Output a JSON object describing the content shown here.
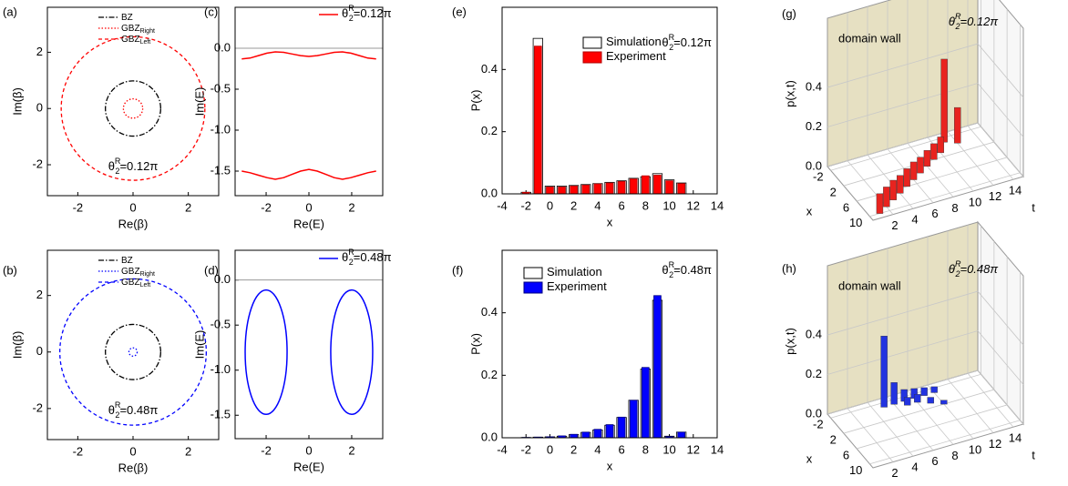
{
  "chart_data": [
    {
      "type": "circles",
      "panel_label": "(a)",
      "x_label": "Re(β)",
      "y_label": "Im(β)",
      "xlim": [
        -3.1,
        3.1
      ],
      "ylim": [
        -3.1,
        3.6
      ],
      "xticks": [
        -2,
        0,
        2
      ],
      "yticks": [
        -2,
        0,
        2
      ],
      "legend": "upper center",
      "annotation": {
        "symbol": "θ",
        "sup": "R",
        "sub": "2",
        "text": "=0.12π"
      },
      "series": [
        {
          "name": "BZ",
          "color": "#000000",
          "dash": "dashdot",
          "radius": 1
        },
        {
          "name": "GBZ",
          "name_sub": "Right",
          "color": "#ff0000",
          "dash": "dot",
          "radius": 0.35
        },
        {
          "name": "GBZ",
          "name_sub": "Left",
          "color": "#ff0000",
          "dash": "dash",
          "radius": 2.6
        }
      ]
    },
    {
      "type": "circles",
      "panel_label": "(b)",
      "x_label": "Re(β)",
      "y_label": "Im(β)",
      "xlim": [
        -3.1,
        3.1
      ],
      "ylim": [
        -3.1,
        3.6
      ],
      "xticks": [
        -2,
        0,
        2
      ],
      "yticks": [
        -2,
        0,
        2
      ],
      "legend": "upper center",
      "annotation": {
        "symbol": "θ",
        "sup": "R",
        "sub": "2",
        "text": "=0.48π"
      },
      "series": [
        {
          "name": "BZ",
          "color": "#000000",
          "dash": "dashdot",
          "radius": 1
        },
        {
          "name": "GBZ",
          "name_sub": "Right",
          "color": "#0000ff",
          "dash": "dot",
          "radius": 0.15
        },
        {
          "name": "GBZ",
          "name_sub": "Left",
          "color": "#0000ff",
          "dash": "dash",
          "radius": 2.65
        }
      ]
    },
    {
      "type": "line",
      "panel_label": "(c)",
      "x_label": "Re(E)",
      "y_label": "Im(E)",
      "xlim": [
        -3.45,
        3.45
      ],
      "ylim": [
        -1.8,
        0.5
      ],
      "xticks": [
        -2,
        0,
        2
      ],
      "yticks": [
        {
          "value": 0,
          "label": "0.0"
        },
        -0.5,
        {
          "value": -1,
          "label": "-1.0"
        },
        -1.5
      ],
      "reference_line": 0,
      "x": [
        -3.14,
        -2.75,
        -2.36,
        -1.96,
        -1.57,
        -1.18,
        -0.79,
        -0.39,
        0,
        0.39,
        0.79,
        1.18,
        1.57,
        1.96,
        2.36,
        2.75,
        3.14
      ],
      "series": [
        {
          "name": {
            "symbol": "θ",
            "sup": "R",
            "sub": "2",
            "text": "=0.12π"
          },
          "color": "#ff0000",
          "values": [
            -0.13,
            -0.12,
            -0.09,
            -0.06,
            -0.045,
            -0.05,
            -0.07,
            -0.09,
            -0.1,
            -0.09,
            -0.07,
            -0.05,
            -0.045,
            -0.06,
            -0.09,
            -0.12,
            -0.13
          ]
        },
        {
          "color": "#ff0000",
          "values": [
            -1.5,
            -1.52,
            -1.55,
            -1.58,
            -1.6,
            -1.58,
            -1.54,
            -1.5,
            -1.48,
            -1.5,
            -1.54,
            -1.58,
            -1.6,
            -1.58,
            -1.55,
            -1.52,
            -1.5
          ]
        }
      ]
    },
    {
      "type": "ellipse",
      "panel_label": "(d)",
      "x_label": "Re(E)",
      "y_label": "Im(E)",
      "xlim": [
        -3.45,
        3.45
      ],
      "ylim": [
        -1.76,
        0.33
      ],
      "xticks": [
        -2,
        0,
        2
      ],
      "yticks": [
        {
          "value": 0,
          "label": "0.0"
        },
        -0.5,
        {
          "value": -1,
          "label": "-1.0"
        },
        -1.5
      ],
      "reference_line": 0,
      "series": [
        {
          "name": {
            "symbol": "θ",
            "sup": "R",
            "sub": "2",
            "text": "=0.48π"
          },
          "color": "#0000ff",
          "ellipses": [
            {
              "cx": -2,
              "cy": -0.8,
              "rx": 0.98,
              "ry": 0.69
            },
            {
              "cx": 2,
              "cy": -0.8,
              "rx": 0.98,
              "ry": 0.69
            }
          ]
        }
      ]
    },
    {
      "type": "bar",
      "panel_label": "(e)",
      "x_label": "x",
      "y_label": "P(x)",
      "xlim": [
        -4,
        14
      ],
      "ylim": [
        0,
        0.6
      ],
      "xticks": [
        -4,
        -2,
        0,
        2,
        4,
        6,
        8,
        10,
        12,
        14
      ],
      "yticks": [
        {
          "value": 0,
          "label": "0.0"
        },
        0.2,
        0.4
      ],
      "legend": "upper center",
      "annotation": {
        "symbol": "θ",
        "sup": "R",
        "sub": "2",
        "text": "=0.12π"
      },
      "x": [
        -2,
        -1,
        0,
        1,
        2,
        3,
        4,
        5,
        6,
        7,
        8,
        9,
        10,
        11
      ],
      "series": [
        {
          "name": "Simulation",
          "color": "#ffffff",
          "edge_color": "#000000",
          "values": [
            0.005,
            0.5,
            0.025,
            0.025,
            0.027,
            0.03,
            0.033,
            0.037,
            0.042,
            0.05,
            0.055,
            0.065,
            0.045,
            0.035
          ]
        },
        {
          "name": "Experiment",
          "color": "#ff0000",
          "edge_color": "#b00000",
          "values": [
            0.005,
            0.475,
            0.022,
            0.022,
            0.025,
            0.028,
            0.032,
            0.035,
            0.04,
            0.048,
            0.058,
            0.06,
            0.042,
            0.033
          ]
        }
      ]
    },
    {
      "type": "bar",
      "panel_label": "(f)",
      "x_label": "x",
      "y_label": "P(x)",
      "xlim": [
        -4,
        14
      ],
      "ylim": [
        0,
        0.6
      ],
      "xticks": [
        -4,
        -2,
        0,
        2,
        4,
        6,
        8,
        10,
        12,
        14
      ],
      "yticks": [
        {
          "value": 0,
          "label": "0.0"
        },
        0.2,
        0.4
      ],
      "legend": "upper left",
      "annotation": {
        "symbol": "θ",
        "sup": "R",
        "sub": "2",
        "text": "=0.48π"
      },
      "x": [
        -2,
        -1,
        0,
        1,
        2,
        3,
        4,
        5,
        6,
        7,
        8,
        9,
        10,
        11
      ],
      "series": [
        {
          "name": "Simulation",
          "color": "#ffffff",
          "edge_color": "#000000",
          "values": [
            0.001,
            0.002,
            0.003,
            0.005,
            0.01,
            0.017,
            0.025,
            0.04,
            0.065,
            0.12,
            0.22,
            0.44,
            0.005,
            0.018
          ]
        },
        {
          "name": "Experiment",
          "color": "#0000ff",
          "edge_color": "#000080",
          "values": [
            0.001,
            0.002,
            0.003,
            0.006,
            0.011,
            0.018,
            0.027,
            0.042,
            0.066,
            0.12,
            0.225,
            0.455,
            0.004,
            0.018
          ]
        }
      ]
    },
    {
      "type": "bar3d",
      "panel_label": "(g)",
      "x_label": "x",
      "y_label": "t",
      "z_label": "p(x,t)",
      "wall_text": "domain wall",
      "annotation": {
        "symbol": "θ",
        "sup": "R",
        "sub": "2",
        "text": "=0.12π"
      },
      "xlim": [
        -3,
        11
      ],
      "ylim": [
        0,
        15
      ],
      "zlim": [
        0,
        0.75
      ],
      "xticks": [
        -2,
        2,
        6,
        10
      ],
      "yticks": [
        2,
        4,
        6,
        8,
        10,
        12,
        14
      ],
      "zticks": [
        {
          "value": 0,
          "label": "0.0"
        },
        0.2,
        0.4
      ],
      "color": "#e8231f",
      "wall_color": "#e6e0c2",
      "x": [
        10,
        9,
        8,
        7,
        6,
        5,
        4,
        3,
        2,
        1,
        -1,
        0
      ],
      "y": [
        1,
        2,
        3,
        4,
        5,
        6,
        7,
        8,
        9,
        10,
        11,
        12
      ],
      "values": [
        0.1,
        0.1,
        0.1,
        0.09,
        0.09,
        0.09,
        0.08,
        0.08,
        0.08,
        0.08,
        0.42,
        0.18
      ]
    },
    {
      "type": "bar3d",
      "panel_label": "(h)",
      "x_label": "x",
      "y_label": "t",
      "z_label": "p(x,t)",
      "wall_text": "domain wall",
      "annotation": {
        "symbol": "θ",
        "sup": "R",
        "sub": "2",
        "text": "=0.48π"
      },
      "xlim": [
        -3,
        11
      ],
      "ylim": [
        0,
        15
      ],
      "zlim": [
        0,
        0.75
      ],
      "xticks": [
        -2,
        2,
        6,
        10
      ],
      "yticks": [
        2,
        4,
        6,
        8,
        10,
        12,
        14
      ],
      "zticks": [
        {
          "value": 0,
          "label": "0.0"
        },
        0.2,
        0.4
      ],
      "color": "#2233e0",
      "wall_color": "#e6e0c2",
      "x": [
        -1,
        -1,
        -1,
        0,
        -1,
        0,
        1,
        -1,
        2,
        -1
      ],
      "y": [
        5,
        6,
        7,
        7,
        8,
        8,
        9,
        9,
        10,
        10
      ],
      "values": [
        0.36,
        0.11,
        0.06,
        0.04,
        0.05,
        0.04,
        0.03,
        0.04,
        0.02,
        0.03
      ]
    }
  ]
}
